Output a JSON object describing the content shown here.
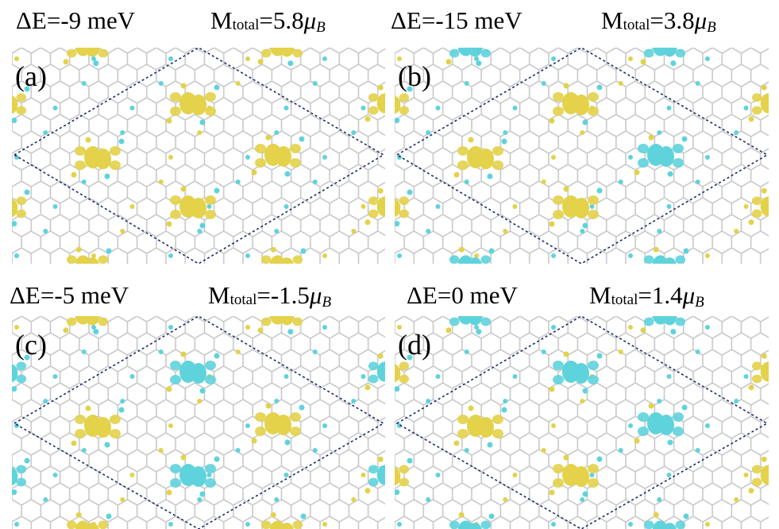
{
  "panels": [
    {
      "label": "(a)",
      "energy": "ΔE=-9 meV",
      "moment": {
        "symbol": "M",
        "subscript": "total",
        "value": "=5.8",
        "unit": "μ",
        "unit_subscript": "B"
      }
    },
    {
      "label": "(b)",
      "energy": "ΔE=-15 meV",
      "moment": {
        "symbol": "M",
        "subscript": "total",
        "value": "=3.8",
        "unit": "μ",
        "unit_subscript": "B"
      }
    },
    {
      "label": "(c)",
      "energy": "ΔE=-5 meV",
      "moment": {
        "symbol": "M",
        "subscript": "total",
        "value": "=-1.5",
        "unit": "μ",
        "unit_subscript": "B"
      }
    },
    {
      "label": "(d)",
      "energy": "ΔE=0 meV",
      "moment": {
        "symbol": "M",
        "subscript": "total",
        "value": "=1.4",
        "unit": "μ",
        "unit_subscript": "B"
      }
    }
  ]
}
